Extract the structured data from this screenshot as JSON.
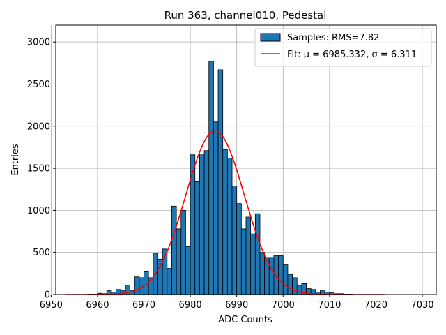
{
  "chart_data": {
    "type": "bar",
    "title": "Run 363, channel010, Pedestal",
    "xlabel": "ADC Counts",
    "ylabel": "Entries",
    "xlim": [
      6951,
      7033
    ],
    "ylim": [
      0,
      3200
    ],
    "x_ticks": [
      6950,
      6960,
      6970,
      6980,
      6990,
      7000,
      7010,
      7020,
      7030
    ],
    "y_ticks": [
      0,
      500,
      1000,
      1500,
      2000,
      2500,
      3000
    ],
    "grid": true,
    "legend_position": "top-right",
    "bin_width": 1,
    "series": [
      {
        "name": "Samples: RMS=7.82",
        "type": "histogram",
        "color": "#1f77b4",
        "edgecolor": "#000000",
        "bins": [
          6958,
          6959,
          6960,
          6961,
          6962,
          6963,
          6964,
          6965,
          6966,
          6967,
          6968,
          6969,
          6970,
          6971,
          6972,
          6973,
          6974,
          6975,
          6976,
          6977,
          6978,
          6979,
          6980,
          6981,
          6982,
          6983,
          6984,
          6985,
          6986,
          6987,
          6988,
          6989,
          6990,
          6991,
          6992,
          6993,
          6994,
          6995,
          6996,
          6997,
          6998,
          6999,
          7000,
          7001,
          7002,
          7003,
          7004,
          7005,
          7006,
          7007,
          7008,
          7009,
          7010,
          7011,
          7012,
          7013,
          7014
        ],
        "values": [
          5,
          5,
          15,
          10,
          45,
          30,
          60,
          50,
          110,
          50,
          210,
          200,
          270,
          200,
          490,
          420,
          540,
          310,
          1050,
          780,
          1000,
          570,
          1660,
          1340,
          1670,
          1710,
          2770,
          2050,
          2670,
          1720,
          1620,
          1290,
          1080,
          780,
          920,
          720,
          960,
          500,
          440,
          440,
          460,
          460,
          360,
          240,
          200,
          110,
          130,
          70,
          60,
          30,
          50,
          30,
          20,
          10,
          10,
          5,
          5
        ]
      },
      {
        "name": "Fit: μ = 6985.332, σ = 6.311",
        "type": "line",
        "color": "#ff0000",
        "mu": 6985.332,
        "sigma": 6.311,
        "amplitude": 1945,
        "x_range": [
          6953,
          7022
        ]
      }
    ]
  }
}
